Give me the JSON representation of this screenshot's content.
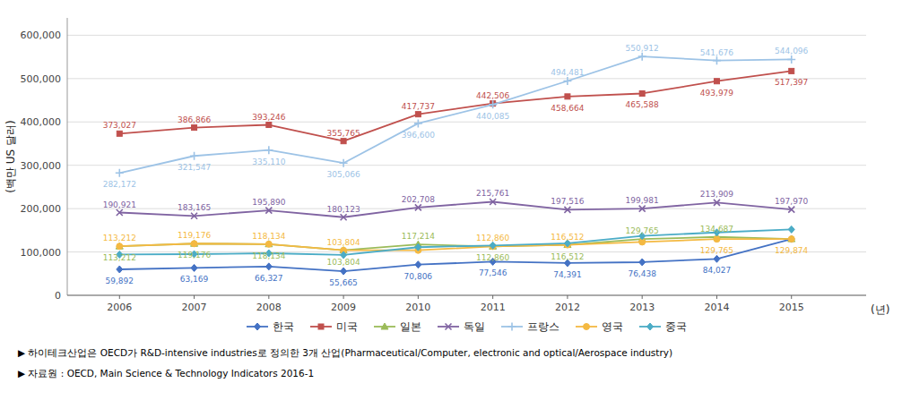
{
  "chart_data": {
    "type": "line",
    "x": [
      2006,
      2007,
      2008,
      2009,
      2010,
      2011,
      2012,
      2013,
      2014,
      2015
    ],
    "series": [
      {
        "name": "한국",
        "color": "#4472C4",
        "marker": "diamond",
        "values": [
          59892,
          63169,
          66327,
          55665,
          70806,
          77546,
          74391,
          76438,
          84027,
          129874
        ],
        "value_labels": [
          "59,892",
          "63,169",
          "66,327",
          "55,665",
          "70,806",
          "77,546",
          "74,391",
          "76,438",
          "84,027",
          null
        ]
      },
      {
        "name": "미국",
        "color": "#C0504D",
        "marker": "square",
        "values": [
          373027,
          386866,
          393246,
          355765,
          417737,
          442506,
          458664,
          465588,
          493979,
          517397
        ],
        "value_labels": [
          "373,027",
          "386,866",
          "393,246",
          "355,765",
          "417,737",
          "442,506",
          "458,664",
          "465,588",
          "493,979",
          "517,397"
        ]
      },
      {
        "name": "일본",
        "color": "#9BBB59",
        "marker": "triangle",
        "values": [
          113212,
          119176,
          118134,
          103804,
          117214,
          112860,
          116512,
          129765,
          134687,
          129874
        ],
        "value_labels": [
          "113,212",
          "119,176",
          "118,134",
          "103,804",
          "117,214",
          "112,860",
          "116,512",
          "129,765",
          "134,687",
          null
        ]
      },
      {
        "name": "독일",
        "color": "#8064A2",
        "marker": "x",
        "values": [
          190921,
          183165,
          195890,
          180123,
          202708,
          215761,
          197516,
          199981,
          213909,
          197970
        ],
        "value_labels": [
          "190,921",
          "183,165",
          "195,890",
          "180,123",
          "202,708",
          "215,761",
          "197,516",
          "199,981",
          "213,909",
          "197,970"
        ]
      },
      {
        "name": "프랑스",
        "color": "#9DC3E6",
        "marker": "plus",
        "values": [
          282172,
          321547,
          335110,
          305066,
          396600,
          440085,
          494481,
          550912,
          541676,
          544096
        ],
        "value_labels": [
          "282,172",
          "321,547",
          "335,110",
          "305,066",
          "396,600",
          "440,085",
          "494,481",
          "550,912",
          "541,676",
          "544,096"
        ]
      },
      {
        "name": "영국",
        "color": "#F4B942",
        "marker": "circle",
        "values": [
          113212,
          119176,
          118134,
          103804,
          103804,
          112860,
          116512,
          123000,
          129765,
          129874
        ],
        "value_labels": [
          "113,212",
          "119,176",
          "118,134",
          "103,804",
          null,
          "112,860",
          "116,512",
          null,
          "129,765",
          "129,874"
        ]
      },
      {
        "name": "중국",
        "color": "#4BACC6",
        "marker": "diamond",
        "values": [
          94000,
          95000,
          97000,
          93000,
          111000,
          115000,
          120000,
          137000,
          145000,
          152000
        ]
      }
    ],
    "xlim": [
      2005.3,
      2016.0
    ],
    "xticks": [
      2006,
      2007,
      2008,
      2009,
      2010,
      2011,
      2012,
      2013,
      2014,
      2015
    ],
    "ylim": [
      0,
      640000
    ],
    "yticks": [
      0,
      {
        "value": 100000,
        "label": "100,000"
      },
      {
        "value": 200000,
        "label": "200,000"
      },
      {
        "value": 300000,
        "label": "300,000"
      },
      {
        "value": 400000,
        "label": "400,000"
      },
      {
        "value": 500000,
        "label": "500,000"
      },
      {
        "value": 600000,
        "label": "600,000"
      }
    ],
    "x_label": "(년)",
    "y_label": "(백만 US 달러)",
    "annotations": [
      "▶ 하이테크산업은 OECD가 R&D-intensive industries로 정의한 3개 산업(Pharmaceutical/Computer, electronic and optical/Aerospace industry)",
      "▶ 자료원 : OECD, Main Science & Technology Indicators 2016-1"
    ],
    "grid": true,
    "legend": "bottom",
    "data_labels": true
  }
}
